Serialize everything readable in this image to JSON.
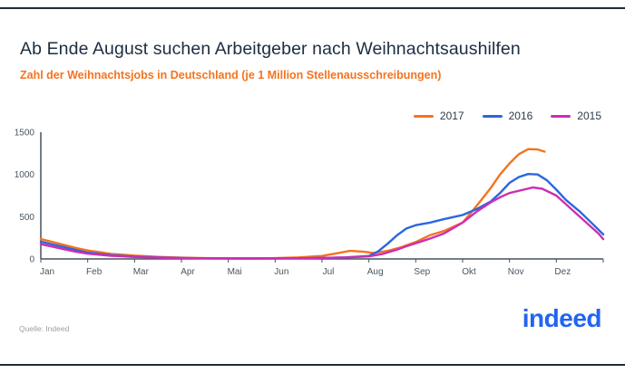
{
  "frame": {
    "border_color": "#1d2b3a"
  },
  "header": {
    "title": "Ab Ende August suchen Arbeitgeber nach Weihnachtsaushilfen",
    "subtitle": "Zahl der Weihnachtsjobs in Deutschland (je 1 Million Stellenausschreibungen)"
  },
  "legend": [
    {
      "label": "2017",
      "color": "#f5731e"
    },
    {
      "label": "2016",
      "color": "#2b66e0"
    },
    {
      "label": "2015",
      "color": "#cb2fb2"
    }
  ],
  "chart_data": {
    "type": "line",
    "title": "Ab Ende August suchen Arbeitgeber nach Weihnachtsaushilfen",
    "subtitle": "Zahl der Weihnachtsjobs in Deutschland (je 1 Million Stellenausschreibungen)",
    "xlabel": "",
    "ylabel": "",
    "xlim": [
      0,
      12
    ],
    "ylim": [
      0,
      1500
    ],
    "yticks": [
      0,
      500,
      1000,
      1500
    ],
    "x_tick_labels": [
      "Jan",
      "Feb",
      "Mar",
      "Apr",
      "Mai",
      "Jun",
      "Jul",
      "Aug",
      "Sep",
      "Okt",
      "Nov",
      "Dez"
    ],
    "grid": false,
    "legend_position": "top-right",
    "series": [
      {
        "name": "2017",
        "color": "#f5731e",
        "points": [
          [
            0,
            235
          ],
          [
            0.25,
            200
          ],
          [
            0.5,
            165
          ],
          [
            0.75,
            130
          ],
          [
            1,
            100
          ],
          [
            1.25,
            80
          ],
          [
            1.5,
            60
          ],
          [
            2,
            40
          ],
          [
            2.5,
            25
          ],
          [
            3,
            15
          ],
          [
            3.5,
            10
          ],
          [
            4,
            8
          ],
          [
            4.5,
            8
          ],
          [
            5,
            10
          ],
          [
            5.5,
            18
          ],
          [
            6,
            35
          ],
          [
            6.3,
            65
          ],
          [
            6.6,
            95
          ],
          [
            6.9,
            85
          ],
          [
            7.1,
            70
          ],
          [
            7.4,
            95
          ],
          [
            7.7,
            140
          ],
          [
            8,
            200
          ],
          [
            8.3,
            280
          ],
          [
            8.6,
            330
          ],
          [
            9,
            430
          ],
          [
            9.2,
            560
          ],
          [
            9.4,
            700
          ],
          [
            9.6,
            840
          ],
          [
            9.8,
            1000
          ],
          [
            10,
            1130
          ],
          [
            10.2,
            1240
          ],
          [
            10.4,
            1300
          ],
          [
            10.6,
            1295
          ],
          [
            10.75,
            1270
          ]
        ]
      },
      {
        "name": "2016",
        "color": "#2b66e0",
        "points": [
          [
            0,
            205
          ],
          [
            0.25,
            170
          ],
          [
            0.5,
            140
          ],
          [
            0.75,
            105
          ],
          [
            1,
            75
          ],
          [
            1.5,
            45
          ],
          [
            2,
            28
          ],
          [
            2.5,
            18
          ],
          [
            3,
            12
          ],
          [
            3.5,
            8
          ],
          [
            4,
            6
          ],
          [
            4.5,
            5
          ],
          [
            5,
            6
          ],
          [
            5.5,
            8
          ],
          [
            6,
            12
          ],
          [
            6.5,
            18
          ],
          [
            7,
            35
          ],
          [
            7.2,
            90
          ],
          [
            7.4,
            180
          ],
          [
            7.6,
            280
          ],
          [
            7.8,
            360
          ],
          [
            8,
            400
          ],
          [
            8.3,
            430
          ],
          [
            8.6,
            470
          ],
          [
            9,
            520
          ],
          [
            9.3,
            590
          ],
          [
            9.6,
            680
          ],
          [
            9.8,
            780
          ],
          [
            10,
            900
          ],
          [
            10.2,
            970
          ],
          [
            10.4,
            1005
          ],
          [
            10.6,
            1000
          ],
          [
            10.8,
            930
          ],
          [
            11,
            820
          ],
          [
            11.2,
            700
          ],
          [
            11.5,
            560
          ],
          [
            11.8,
            400
          ],
          [
            12,
            290
          ]
        ]
      },
      {
        "name": "2015",
        "color": "#cb2fb2",
        "points": [
          [
            0,
            175
          ],
          [
            0.25,
            145
          ],
          [
            0.5,
            115
          ],
          [
            0.75,
            85
          ],
          [
            1,
            62
          ],
          [
            1.5,
            38
          ],
          [
            2,
            24
          ],
          [
            2.5,
            15
          ],
          [
            3,
            10
          ],
          [
            3.5,
            7
          ],
          [
            4,
            5
          ],
          [
            4.5,
            5
          ],
          [
            5,
            6
          ],
          [
            5.5,
            9
          ],
          [
            6,
            13
          ],
          [
            6.5,
            18
          ],
          [
            7,
            30
          ],
          [
            7.3,
            60
          ],
          [
            7.6,
            110
          ],
          [
            7.8,
            150
          ],
          [
            8,
            185
          ],
          [
            8.3,
            240
          ],
          [
            8.6,
            300
          ],
          [
            9,
            430
          ],
          [
            9.3,
            560
          ],
          [
            9.6,
            670
          ],
          [
            9.8,
            730
          ],
          [
            10,
            780
          ],
          [
            10.3,
            820
          ],
          [
            10.5,
            845
          ],
          [
            10.7,
            830
          ],
          [
            11,
            750
          ],
          [
            11.3,
            600
          ],
          [
            11.6,
            450
          ],
          [
            11.9,
            300
          ],
          [
            12,
            235
          ]
        ]
      }
    ]
  },
  "axis": {
    "color": "#46525e",
    "tick_label_color": "#4a5560"
  },
  "footer": {
    "source": "Quelle: Indeed",
    "logo_text": "indeed"
  }
}
